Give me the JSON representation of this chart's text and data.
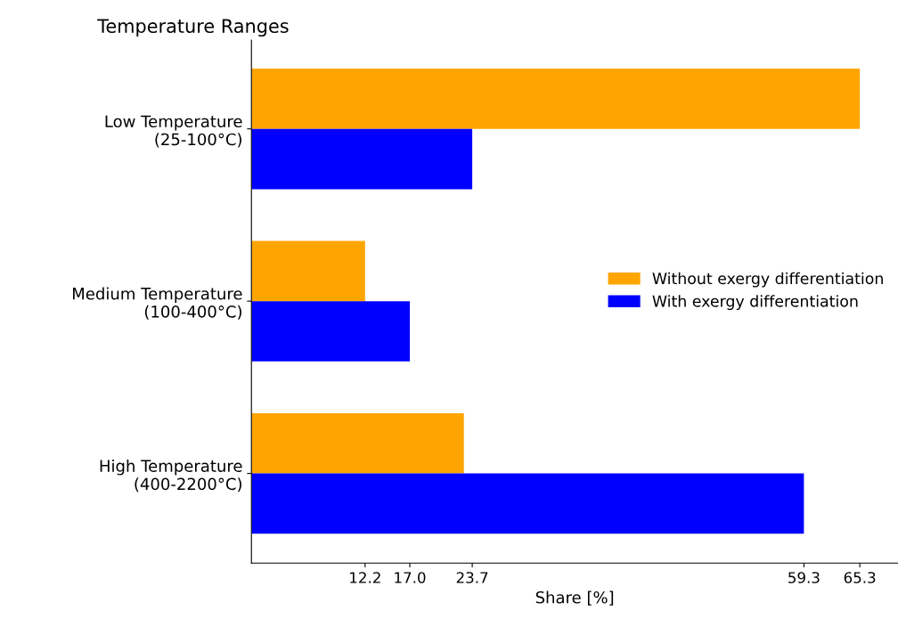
{
  "chart_data": {
    "type": "bar",
    "orientation": "horizontal",
    "title": "Temperature Ranges",
    "xlabel": "Share [%]",
    "categories": [
      "Low Temperature\n(25-100°C)",
      "Medium Temperature\n(100-400°C)",
      "High Temperature\n(400-2200°C)"
    ],
    "series": [
      {
        "name": "Without exergy differentiation",
        "color": "#ffa500",
        "values": [
          65.3,
          12.2,
          22.8
        ]
      },
      {
        "name": "With exergy differentiation",
        "color": "#0000ff",
        "values": [
          23.7,
          17.0,
          59.3
        ]
      }
    ],
    "xlim": [
      0,
      69.4
    ],
    "xticks": [
      12.2,
      {
        "value": 17.0,
        "label": "17.0"
      },
      23.7,
      59.3,
      65.3
    ],
    "grid": false,
    "legend": "right"
  }
}
